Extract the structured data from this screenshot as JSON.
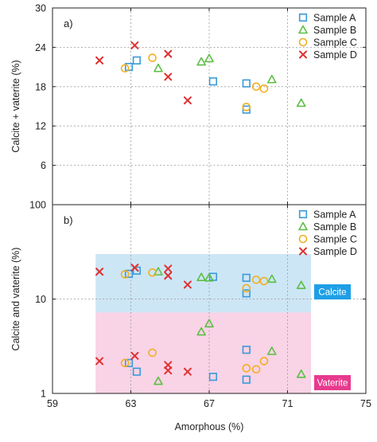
{
  "colors": {
    "Sample A": "#3a9ad9",
    "Sample B": "#5cbf45",
    "Sample C": "#f0b020",
    "Sample D": "#e03030",
    "calcite_band": "#cde6f6",
    "vaterite_band": "#f9d3e6",
    "calcite_badge": "#1e9fe6",
    "vaterite_badge": "#e83a8e"
  },
  "chart_data": [
    {
      "type": "scatter",
      "panel_label": "a)",
      "xlabel": "",
      "ylabel": "Calcite + vaterite (%)",
      "xlim": [
        59,
        75
      ],
      "ylim": [
        0,
        30
      ],
      "yscale": "linear",
      "xticks": [
        59,
        63,
        67,
        71,
        75
      ],
      "yticks": [
        6,
        12,
        18,
        24,
        30
      ],
      "grid": true,
      "legend_position": "top-right",
      "series": [
        {
          "name": "Sample A",
          "marker": "square",
          "points": [
            [
              62.9,
              21.0
            ],
            [
              63.3,
              22.0
            ],
            [
              67.2,
              18.8
            ],
            [
              68.9,
              18.5
            ],
            [
              68.9,
              14.5
            ]
          ]
        },
        {
          "name": "Sample B",
          "marker": "triangle",
          "points": [
            [
              64.4,
              20.8
            ],
            [
              66.6,
              21.8
            ],
            [
              67.0,
              22.3
            ],
            [
              70.2,
              19.1
            ],
            [
              71.7,
              15.5
            ]
          ]
        },
        {
          "name": "Sample C",
          "marker": "circle",
          "points": [
            [
              62.7,
              20.8
            ],
            [
              64.1,
              22.4
            ],
            [
              68.9,
              14.9
            ],
            [
              69.4,
              18.0
            ],
            [
              69.8,
              17.7
            ]
          ]
        },
        {
          "name": "Sample D",
          "marker": "x",
          "points": [
            [
              61.4,
              22.0
            ],
            [
              63.2,
              24.3
            ],
            [
              64.9,
              23.0
            ],
            [
              64.9,
              19.5
            ],
            [
              65.9,
              15.9
            ]
          ]
        }
      ]
    },
    {
      "type": "scatter",
      "panel_label": "b)",
      "xlabel": "Amorphous (%)",
      "ylabel": "Calcite and vaterite (%)",
      "xlim": [
        59,
        75
      ],
      "ylim": [
        1,
        100
      ],
      "yscale": "log",
      "xticks": [
        59,
        63,
        67,
        71,
        75
      ],
      "yticks": [
        1,
        10,
        100
      ],
      "grid": true,
      "legend_position": "top-right",
      "bands": [
        {
          "label": "Calcite",
          "x": [
            61.2,
            72.2
          ],
          "y": [
            7.2,
            30
          ]
        },
        {
          "label": "Vaterite",
          "x": [
            61.2,
            72.2
          ],
          "y": [
            1,
            7.2
          ]
        }
      ],
      "series": [
        {
          "name": "Sample A",
          "marker": "square",
          "points": [
            [
              62.9,
              18.5
            ],
            [
              63.3,
              20.0
            ],
            [
              67.2,
              17.2
            ],
            [
              68.9,
              16.8
            ],
            [
              68.9,
              11.5
            ],
            [
              62.9,
              2.1
            ],
            [
              63.3,
              1.7
            ],
            [
              67.2,
              1.5
            ],
            [
              68.9,
              2.9
            ],
            [
              68.9,
              1.4
            ]
          ]
        },
        {
          "name": "Sample B",
          "marker": "triangle",
          "points": [
            [
              64.4,
              19.5
            ],
            [
              66.6,
              17.0
            ],
            [
              67.0,
              16.8
            ],
            [
              70.2,
              16.3
            ],
            [
              71.7,
              14.0
            ],
            [
              64.4,
              1.35
            ],
            [
              66.6,
              4.5
            ],
            [
              67.0,
              5.5
            ],
            [
              70.2,
              2.8
            ],
            [
              71.7,
              1.6
            ]
          ]
        },
        {
          "name": "Sample C",
          "marker": "circle",
          "points": [
            [
              62.7,
              18.3
            ],
            [
              64.1,
              19.1
            ],
            [
              68.9,
              13.0
            ],
            [
              69.4,
              16.0
            ],
            [
              69.8,
              15.5
            ],
            [
              62.7,
              2.1
            ],
            [
              64.1,
              2.7
            ],
            [
              68.9,
              1.85
            ],
            [
              69.4,
              1.8
            ],
            [
              69.8,
              2.2
            ]
          ]
        },
        {
          "name": "Sample D",
          "marker": "x",
          "points": [
            [
              61.4,
              19.5
            ],
            [
              63.2,
              21.5
            ],
            [
              64.9,
              21.0
            ],
            [
              64.9,
              17.7
            ],
            [
              65.9,
              14.2
            ],
            [
              61.4,
              2.2
            ],
            [
              63.2,
              2.5
            ],
            [
              64.9,
              2.0
            ],
            [
              64.9,
              1.75
            ],
            [
              65.9,
              1.7
            ]
          ]
        }
      ]
    }
  ]
}
